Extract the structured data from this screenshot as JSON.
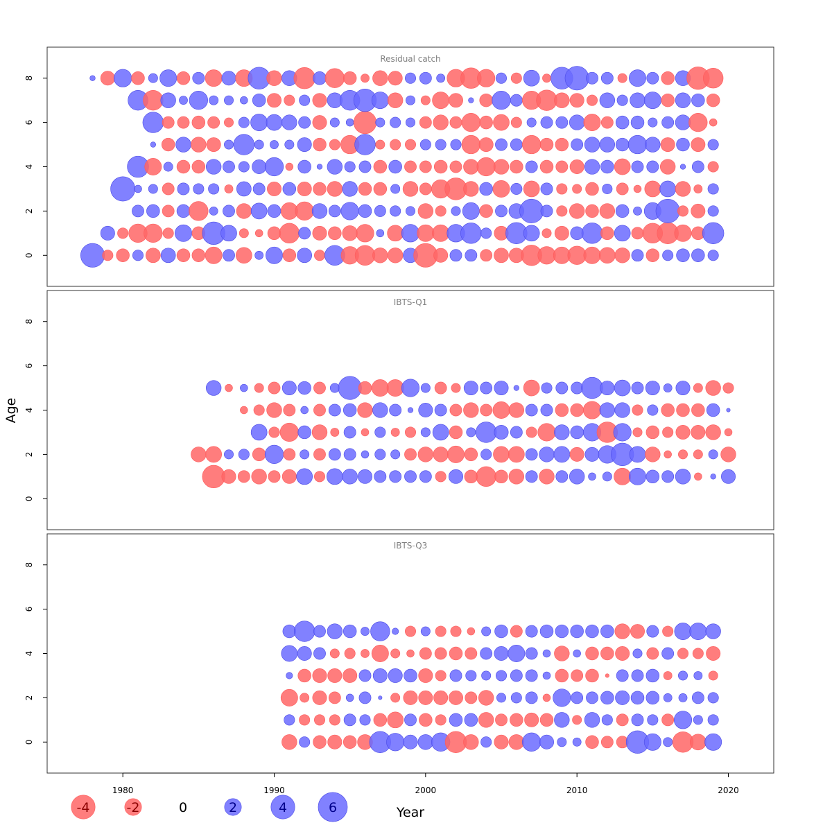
{
  "chart_data": {
    "type": "scatter",
    "subtype": "bubble",
    "xlabel": "Year",
    "ylabel": "Age",
    "xlim": [
      1975,
      2023
    ],
    "x_ticks": [
      "1980",
      "1990",
      "2000",
      "2010",
      "2020"
    ],
    "y_ticks": [
      "0",
      "2",
      "4",
      "6",
      "8"
    ],
    "colors": {
      "positive": "#6b6bff",
      "negative": "#ff6666"
    },
    "legend": {
      "placement": "bottom",
      "items": [
        {
          "label": "-4",
          "value": -4
        },
        {
          "label": "-2",
          "value": -2
        },
        {
          "label": "0",
          "value": 0
        },
        {
          "label": "2",
          "value": 2
        },
        {
          "label": "4",
          "value": 4
        },
        {
          "label": "6",
          "value": 6
        }
      ]
    },
    "panels": [
      {
        "title": "Residual catch",
        "ylim": [
          -1.4,
          9.4
        ],
        "ages": [
          0,
          1,
          2,
          3,
          4,
          5,
          6,
          7,
          8
        ],
        "years": [
          1978,
          1979,
          1980,
          1981,
          1982,
          1983,
          1984,
          1985,
          1986,
          1987,
          1988,
          1989,
          1990,
          1991,
          1992,
          1993,
          1994,
          1995,
          1996,
          1997,
          1998,
          1999,
          2000,
          2001,
          2002,
          2003,
          2004,
          2005,
          2006,
          2007,
          2008,
          2009,
          2010,
          2011,
          2012,
          2013,
          2014,
          2015,
          2016,
          2017,
          2018,
          2019
        ],
        "residuals": [
          [
            4.0,
            -0.8,
            -1.2,
            0.8,
            -1.5,
            1.5,
            -1.2,
            -1.2,
            -2.0,
            1.0,
            -1.8,
            0.5,
            2.0,
            -1.2,
            1.5,
            -0.8,
            2.8,
            -2.2,
            -2.8,
            -1.6,
            -1.6,
            1.5,
            -4.0,
            -1.4,
            1.0,
            1.0,
            -1.0,
            -1.5,
            -1.5,
            -3.0,
            -2.2,
            -2.0,
            -2.4,
            -2.0,
            -1.8,
            -1.6,
            1.0,
            -1.2,
            0.8,
            1.2,
            1.2,
            0.8
          ],
          [
            1.4,
            -0.8,
            -2.4,
            -2.4,
            -0.8,
            2.0,
            -1.2,
            3.6,
            1.8,
            -0.6,
            -0.4,
            -1.2,
            -2.8,
            1.0,
            -1.4,
            -1.2,
            -1.6,
            -2.2,
            0.4,
            -1.8,
            2.2,
            -2.0,
            -2.0,
            2.2,
            3.0,
            0.8,
            -1.4,
            3.2,
            1.8,
            -0.6,
            -1.4,
            1.2,
            3.0,
            -1.2,
            1.8,
            -1.0,
            -2.8,
            -3.2,
            -2.0,
            -1.2,
            3.2
          ],
          [
            1.0,
            1.2,
            -1.0,
            1.2,
            -2.6,
            0.5,
            1.0,
            -1.6,
            1.8,
            1.2,
            -2.0,
            -2.4,
            1.6,
            1.0,
            2.2,
            1.2,
            0.9,
            0.8,
            0.6,
            -1.6,
            -0.8,
            0.6,
            2.0,
            -1.2,
            1.0,
            1.6,
            4.0,
            1.0,
            -0.8,
            -1.6,
            -1.2,
            -1.6,
            1.2,
            0.5,
            2.0,
            4.0,
            -0.8,
            -1.4,
            0.8
          ],
          [
            4.2,
            0.4,
            0.6,
            -1.0,
            1.0,
            0.8,
            0.8,
            -0.5,
            1.5,
            1.0,
            -1.4,
            1.2,
            -1.4,
            -1.2,
            -1.6,
            1.6,
            -1.2,
            -1.2,
            0.6,
            -1.6,
            -1.0,
            -2.4,
            -3.4,
            -1.6,
            1.2,
            -2.0,
            0.9,
            -1.8,
            1.0,
            -0.8,
            -0.6,
            -1.2,
            0.7,
            -1.0,
            -0.4,
            -1.8,
            1.8,
            -1.6,
            -0.5,
            0.8
          ],
          [
            3.2,
            -2.0,
            0.6,
            -1.2,
            -1.2,
            1.6,
            1.0,
            0.8,
            1.4,
            2.4,
            -0.4,
            1.2,
            0.2,
            1.6,
            0.8,
            1.0,
            -1.2,
            1.2,
            -1.0,
            -1.0,
            -1.2,
            -1.0,
            -1.6,
            -2.4,
            -1.6,
            -1.2,
            1.0,
            -1.2,
            -1.0,
            -1.4,
            1.6,
            1.2,
            -1.8,
            1.0,
            1.0,
            -1.6,
            0.2,
            1.0,
            -0.8
          ],
          [
            0.2,
            -1.2,
            1.6,
            -1.6,
            -1.4,
            0.6,
            3.0,
            0.6,
            0.5,
            0.6,
            1.4,
            -1.2,
            -0.8,
            -2.4,
            3.0,
            -0.6,
            -0.8,
            -0.8,
            0.8,
            0.8,
            0.8,
            -2.4,
            -1.4,
            1.0,
            1.0,
            -2.4,
            -1.2,
            -1.2,
            1.0,
            1.6,
            1.6,
            1.2,
            2.4,
            1.6,
            -1.4,
            1.2,
            -1.4,
            0.8
          ],
          [
            3.0,
            -1.0,
            -1.0,
            -1.2,
            -1.0,
            -0.6,
            0.8,
            2.0,
            1.8,
            1.6,
            1.0,
            -1.4,
            0.6,
            0.4,
            -3.6,
            0.6,
            0.8,
            0.6,
            -1.0,
            -1.6,
            -1.0,
            -2.4,
            -1.2,
            -1.8,
            -0.8,
            0.6,
            1.0,
            1.0,
            1.6,
            -2.0,
            -1.0,
            1.2,
            1.2,
            0.6,
            1.0,
            1.6,
            -2.4,
            -0.4
          ],
          [
            2.8,
            -2.8,
            1.6,
            0.5,
            2.4,
            0.6,
            0.6,
            0.4,
            1.2,
            -1.4,
            -0.8,
            0.8,
            -1.4,
            1.6,
            2.8,
            3.6,
            2.0,
            -1.6,
            0.6,
            -0.6,
            -2.0,
            -1.4,
            0.2,
            -1.2,
            2.4,
            1.0,
            -2.4,
            -3.0,
            -1.6,
            -1.4,
            -0.8,
            1.6,
            0.8,
            1.6,
            2.0,
            -1.2,
            1.6,
            1.2,
            -1.2
          ],
          [
            0.2,
            -1.4,
            2.2,
            -1.2,
            0.6,
            2.0,
            -1.2,
            1.0,
            -2.0,
            1.4,
            -2.0,
            3.4,
            -1.6,
            1.6,
            -3.2,
            1.2,
            -2.6,
            -1.2,
            -0.5,
            -1.6,
            -1.4,
            0.8,
            1.0,
            0.5,
            -2.2,
            -3.0,
            -2.2,
            0.8,
            -0.8,
            1.8,
            -0.5,
            3.4,
            4.0,
            1.0,
            1.0,
            -0.6,
            2.0,
            1.0,
            -1.2,
            1.6,
            -3.6,
            -2.8
          ]
        ]
      },
      {
        "title": "IBTS-Q1",
        "ylim": [
          -1.4,
          9.4
        ],
        "ages": [
          1,
          2,
          3,
          4,
          5
        ],
        "years": [
          1983,
          1984,
          1985,
          1986,
          1987,
          1988,
          1989,
          1990,
          1991,
          1992,
          1993,
          1994,
          1995,
          1996,
          1997,
          1998,
          1999,
          2000,
          2001,
          2002,
          2003,
          2004,
          2005,
          2006,
          2007,
          2008,
          2009,
          2010,
          2011,
          2012,
          2013,
          2014,
          2015,
          2016,
          2017,
          2018,
          2019,
          2020
        ],
        "residuals": [
          [
            -3.6,
            -1.4,
            -1.0,
            -1.6,
            -1.0,
            -1.4,
            1.8,
            -0.8,
            1.8,
            1.6,
            1.4,
            1.0,
            1.0,
            1.0,
            1.0,
            -0.8,
            1.4,
            -1.2,
            -2.8,
            -1.2,
            -1.6,
            1.0,
            -1.6,
            1.0,
            1.6,
            0.4,
            0.6,
            -2.0,
            2.0,
            1.2,
            1.0,
            1.6,
            -0.4,
            0.2,
            1.4
          ],
          [
            -1.6,
            -1.8,
            0.6,
            0.8,
            -1.2,
            2.4,
            -1.0,
            0.6,
            -1.0,
            1.0,
            1.0,
            0.4,
            0.8,
            0.6,
            -1.0,
            -1.6,
            -1.6,
            -2.0,
            -1.2,
            0.8,
            -1.8,
            -1.8,
            1.0,
            1.6,
            1.8,
            -1.4,
            1.4,
            2.2,
            3.6,
            1.8,
            -1.6,
            -0.4,
            -0.6,
            -0.6,
            0.6,
            -1.6
          ],
          [
            1.8,
            -0.8,
            -2.4,
            1.2,
            -1.6,
            -0.5,
            1.0,
            -0.4,
            0.8,
            -0.5,
            -0.8,
            0.6,
            1.8,
            -1.2,
            0.6,
            3.0,
            1.4,
            1.0,
            -0.8,
            -2.2,
            1.6,
            1.2,
            2.2,
            -3.0,
            2.2,
            -0.6,
            -1.2,
            -0.8,
            -1.4,
            -1.4,
            -1.6,
            -0.4
          ],
          [
            -0.4,
            -0.8,
            -1.6,
            -1.0,
            0.4,
            -1.0,
            1.0,
            1.2,
            -1.6,
            1.6,
            1.0,
            0.2,
            1.4,
            1.0,
            -1.0,
            -1.6,
            -1.0,
            -2.0,
            -1.6,
            1.0,
            1.0,
            -1.2,
            -1.2,
            -2.2,
            1.6,
            1.6,
            -0.8,
            0.8,
            -1.2,
            -1.2,
            -1.2,
            1.2,
            0.1
          ],
          [
            1.6,
            -0.4,
            0.4,
            -0.6,
            -1.0,
            1.4,
            1.2,
            -1.0,
            0.6,
            3.8,
            -1.2,
            -2.0,
            -2.0,
            2.2,
            0.6,
            -1.0,
            -0.6,
            1.4,
            1.0,
            1.4,
            0.2,
            -1.8,
            0.8,
            1.0,
            1.0,
            3.2,
            1.4,
            1.8,
            1.0,
            1.4,
            0.5,
            1.4,
            -0.6,
            -1.6,
            -0.8
          ]
        ]
      },
      {
        "title": "IBTS-Q3",
        "ylim": [
          -1.4,
          9.4
        ],
        "ages": [
          0,
          1,
          2,
          3,
          4,
          5
        ],
        "years": [
          1991,
          1992,
          1993,
          1994,
          1995,
          1996,
          1997,
          1998,
          1999,
          2000,
          2001,
          2002,
          2003,
          2004,
          2005,
          2006,
          2007,
          2008,
          2009,
          2010,
          2011,
          2012,
          2013,
          2014,
          2015,
          2016,
          2017,
          2018,
          2019
        ],
        "residuals": [
          [
            -1.6,
            0.8,
            -1.2,
            -1.4,
            -1.2,
            -1.6,
            3.2,
            2.2,
            1.4,
            1.6,
            2.4,
            -3.2,
            -1.6,
            0.8,
            -1.4,
            -1.6,
            2.4,
            1.4,
            0.6,
            0.5,
            -1.2,
            -1.0,
            -1.0,
            3.6,
            2.0,
            0.6,
            -3.0,
            -1.8,
            2.0
          ],
          [
            0.8,
            -0.8,
            -0.8,
            -0.8,
            1.0,
            0.8,
            -1.2,
            -1.8,
            1.0,
            -1.2,
            -0.8,
            1.2,
            1.2,
            -1.6,
            -1.0,
            -1.2,
            -1.4,
            -1.2,
            1.6,
            -0.6,
            1.6,
            0.8,
            -1.0,
            1.0,
            0.8,
            -1.0,
            2.2,
            0.6,
            0.8
          ],
          [
            -2.0,
            -0.6,
            -1.4,
            -1.0,
            0.4,
            1.0,
            0.1,
            -0.6,
            -1.4,
            -1.4,
            -1.4,
            -1.4,
            -1.0,
            -1.6,
            0.6,
            0.8,
            1.0,
            -0.4,
            2.2,
            1.0,
            1.0,
            1.2,
            1.4,
            1.2,
            1.2,
            0.5,
            0.5,
            1.0,
            0.8
          ],
          [
            0.3,
            -1.2,
            -1.4,
            -1.4,
            -1.4,
            1.0,
            1.4,
            1.4,
            1.2,
            -1.4,
            -0.8,
            1.0,
            0.8,
            0.6,
            0.8,
            1.0,
            1.0,
            0.4,
            -1.2,
            -1.0,
            -1.2,
            -0.1,
            1.0,
            1.0,
            1.2,
            -0.5,
            0.6,
            0.5,
            -0.6
          ],
          [
            1.8,
            1.4,
            1.0,
            -0.6,
            -0.8,
            -0.5,
            -2.0,
            -0.6,
            -0.4,
            -1.0,
            -1.0,
            -1.2,
            -1.0,
            1.0,
            1.4,
            2.0,
            1.0,
            0.4,
            -1.6,
            0.4,
            -1.2,
            -1.2,
            -1.4,
            0.6,
            -1.0,
            1.0,
            -0.8,
            -0.8,
            -1.4
          ],
          [
            1.2,
            3.0,
            1.0,
            1.6,
            1.2,
            0.5,
            2.6,
            0.3,
            -0.8,
            0.6,
            -0.8,
            -0.8,
            -0.4,
            0.6,
            1.2,
            -1.0,
            1.0,
            1.2,
            1.2,
            1.2,
            1.2,
            1.2,
            -1.6,
            -1.4,
            1.0,
            -0.8,
            2.0,
            2.0,
            1.6
          ]
        ]
      }
    ]
  }
}
